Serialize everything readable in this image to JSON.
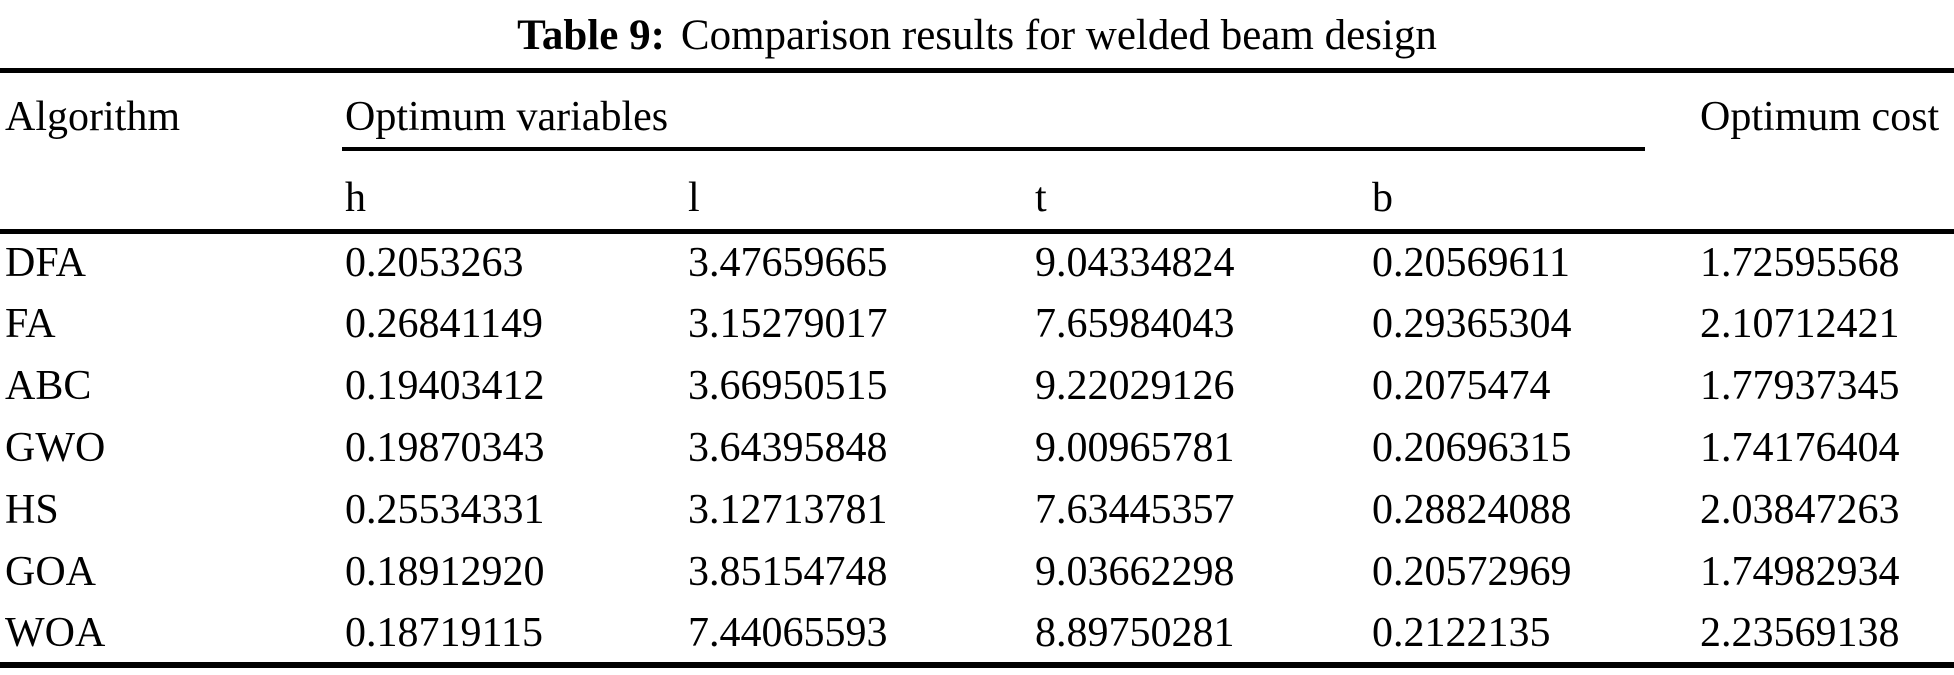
{
  "colors": {
    "text": "#000000",
    "background": "#ffffff",
    "rule": "#000000"
  },
  "caption": {
    "label": "Table 9:",
    "text": "Comparison results for welded beam design"
  },
  "table": {
    "headers": {
      "algorithm": "Algorithm",
      "group": "Optimum variables",
      "cost": "Optimum cost",
      "h": "h",
      "l": "l",
      "t": "t",
      "b": "b"
    },
    "rows": [
      {
        "algorithm": "DFA",
        "h": "0.2053263",
        "l": "3.47659665",
        "t": "9.04334824",
        "b": "0.20569611",
        "cost": "1.72595568"
      },
      {
        "algorithm": "FA",
        "h": "0.26841149",
        "l": "3.15279017",
        "t": "7.65984043",
        "b": "0.29365304",
        "cost": "2.10712421"
      },
      {
        "algorithm": "ABC",
        "h": "0.19403412",
        "l": "3.66950515",
        "t": "9.22029126",
        "b": "0.2075474",
        "cost": "1.77937345"
      },
      {
        "algorithm": "GWO",
        "h": "0.19870343",
        "l": "3.64395848",
        "t": "9.00965781",
        "b": "0.20696315",
        "cost": "1.74176404"
      },
      {
        "algorithm": "HS",
        "h": "0.25534331",
        "l": "3.12713781",
        "t": "7.63445357",
        "b": "0.28824088",
        "cost": "2.03847263"
      },
      {
        "algorithm": "GOA",
        "h": "0.18912920",
        "l": "3.85154748",
        "t": "9.03662298",
        "b": "0.20572969",
        "cost": "1.74982934"
      },
      {
        "algorithm": "WOA",
        "h": "0.18719115",
        "l": "7.44065593",
        "t": "8.89750281",
        "b": "0.2122135",
        "cost": "2.23569138"
      }
    ]
  }
}
